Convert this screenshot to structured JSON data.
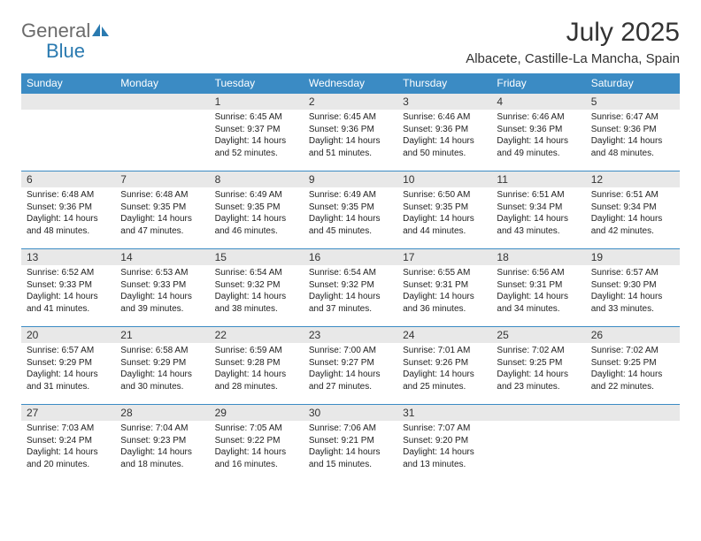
{
  "logo": {
    "text1": "General",
    "text2": "Blue"
  },
  "title": "July 2025",
  "location": "Albacete, Castille-La Mancha, Spain",
  "colors": {
    "header_bg": "#3b8bc4",
    "header_text": "#ffffff",
    "daynum_bg": "#e8e8e8",
    "border": "#3b8bc4",
    "logo_gray": "#6b6b6b",
    "logo_blue": "#2a7ab0"
  },
  "dayHeaders": [
    "Sunday",
    "Monday",
    "Tuesday",
    "Wednesday",
    "Thursday",
    "Friday",
    "Saturday"
  ],
  "weeks": [
    [
      null,
      null,
      {
        "n": "1",
        "sr": "6:45 AM",
        "ss": "9:37 PM",
        "dl": "14 hours and 52 minutes."
      },
      {
        "n": "2",
        "sr": "6:45 AM",
        "ss": "9:36 PM",
        "dl": "14 hours and 51 minutes."
      },
      {
        "n": "3",
        "sr": "6:46 AM",
        "ss": "9:36 PM",
        "dl": "14 hours and 50 minutes."
      },
      {
        "n": "4",
        "sr": "6:46 AM",
        "ss": "9:36 PM",
        "dl": "14 hours and 49 minutes."
      },
      {
        "n": "5",
        "sr": "6:47 AM",
        "ss": "9:36 PM",
        "dl": "14 hours and 48 minutes."
      }
    ],
    [
      {
        "n": "6",
        "sr": "6:48 AM",
        "ss": "9:36 PM",
        "dl": "14 hours and 48 minutes."
      },
      {
        "n": "7",
        "sr": "6:48 AM",
        "ss": "9:35 PM",
        "dl": "14 hours and 47 minutes."
      },
      {
        "n": "8",
        "sr": "6:49 AM",
        "ss": "9:35 PM",
        "dl": "14 hours and 46 minutes."
      },
      {
        "n": "9",
        "sr": "6:49 AM",
        "ss": "9:35 PM",
        "dl": "14 hours and 45 minutes."
      },
      {
        "n": "10",
        "sr": "6:50 AM",
        "ss": "9:35 PM",
        "dl": "14 hours and 44 minutes."
      },
      {
        "n": "11",
        "sr": "6:51 AM",
        "ss": "9:34 PM",
        "dl": "14 hours and 43 minutes."
      },
      {
        "n": "12",
        "sr": "6:51 AM",
        "ss": "9:34 PM",
        "dl": "14 hours and 42 minutes."
      }
    ],
    [
      {
        "n": "13",
        "sr": "6:52 AM",
        "ss": "9:33 PM",
        "dl": "14 hours and 41 minutes."
      },
      {
        "n": "14",
        "sr": "6:53 AM",
        "ss": "9:33 PM",
        "dl": "14 hours and 39 minutes."
      },
      {
        "n": "15",
        "sr": "6:54 AM",
        "ss": "9:32 PM",
        "dl": "14 hours and 38 minutes."
      },
      {
        "n": "16",
        "sr": "6:54 AM",
        "ss": "9:32 PM",
        "dl": "14 hours and 37 minutes."
      },
      {
        "n": "17",
        "sr": "6:55 AM",
        "ss": "9:31 PM",
        "dl": "14 hours and 36 minutes."
      },
      {
        "n": "18",
        "sr": "6:56 AM",
        "ss": "9:31 PM",
        "dl": "14 hours and 34 minutes."
      },
      {
        "n": "19",
        "sr": "6:57 AM",
        "ss": "9:30 PM",
        "dl": "14 hours and 33 minutes."
      }
    ],
    [
      {
        "n": "20",
        "sr": "6:57 AM",
        "ss": "9:29 PM",
        "dl": "14 hours and 31 minutes."
      },
      {
        "n": "21",
        "sr": "6:58 AM",
        "ss": "9:29 PM",
        "dl": "14 hours and 30 minutes."
      },
      {
        "n": "22",
        "sr": "6:59 AM",
        "ss": "9:28 PM",
        "dl": "14 hours and 28 minutes."
      },
      {
        "n": "23",
        "sr": "7:00 AM",
        "ss": "9:27 PM",
        "dl": "14 hours and 27 minutes."
      },
      {
        "n": "24",
        "sr": "7:01 AM",
        "ss": "9:26 PM",
        "dl": "14 hours and 25 minutes."
      },
      {
        "n": "25",
        "sr": "7:02 AM",
        "ss": "9:25 PM",
        "dl": "14 hours and 23 minutes."
      },
      {
        "n": "26",
        "sr": "7:02 AM",
        "ss": "9:25 PM",
        "dl": "14 hours and 22 minutes."
      }
    ],
    [
      {
        "n": "27",
        "sr": "7:03 AM",
        "ss": "9:24 PM",
        "dl": "14 hours and 20 minutes."
      },
      {
        "n": "28",
        "sr": "7:04 AM",
        "ss": "9:23 PM",
        "dl": "14 hours and 18 minutes."
      },
      {
        "n": "29",
        "sr": "7:05 AM",
        "ss": "9:22 PM",
        "dl": "14 hours and 16 minutes."
      },
      {
        "n": "30",
        "sr": "7:06 AM",
        "ss": "9:21 PM",
        "dl": "14 hours and 15 minutes."
      },
      {
        "n": "31",
        "sr": "7:07 AM",
        "ss": "9:20 PM",
        "dl": "14 hours and 13 minutes."
      },
      null,
      null
    ]
  ],
  "labels": {
    "sunrise": "Sunrise:",
    "sunset": "Sunset:",
    "daylight": "Daylight:"
  }
}
